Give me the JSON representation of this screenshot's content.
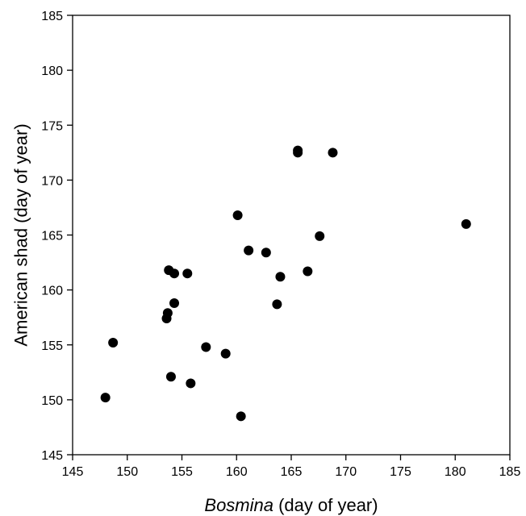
{
  "chart_data": {
    "type": "scatter",
    "xlabel_italic": "Bosmina",
    "xlabel_rest": " (day of year)",
    "ylabel": "American shad (day of year)",
    "xlim": [
      145,
      185
    ],
    "ylim": [
      145,
      185
    ],
    "xticks": [
      145,
      150,
      155,
      160,
      165,
      170,
      175,
      180,
      185
    ],
    "yticks": [
      145,
      150,
      155,
      160,
      165,
      170,
      175,
      180,
      185
    ],
    "grid": false,
    "legend": "none",
    "marker_color": "#000000",
    "points": [
      {
        "x": 148.0,
        "y": 150.2
      },
      {
        "x": 148.7,
        "y": 155.2
      },
      {
        "x": 153.6,
        "y": 157.4
      },
      {
        "x": 153.7,
        "y": 157.9
      },
      {
        "x": 153.8,
        "y": 161.8
      },
      {
        "x": 154.0,
        "y": 152.1
      },
      {
        "x": 154.3,
        "y": 161.5
      },
      {
        "x": 154.3,
        "y": 158.8
      },
      {
        "x": 155.5,
        "y": 161.5
      },
      {
        "x": 155.8,
        "y": 151.5
      },
      {
        "x": 157.2,
        "y": 154.8
      },
      {
        "x": 159.0,
        "y": 154.2
      },
      {
        "x": 160.1,
        "y": 166.8
      },
      {
        "x": 160.4,
        "y": 148.5
      },
      {
        "x": 161.1,
        "y": 163.6
      },
      {
        "x": 162.7,
        "y": 163.4
      },
      {
        "x": 163.7,
        "y": 158.7
      },
      {
        "x": 164.0,
        "y": 161.2
      },
      {
        "x": 165.6,
        "y": 172.7
      },
      {
        "x": 165.6,
        "y": 172.5
      },
      {
        "x": 166.5,
        "y": 161.7
      },
      {
        "x": 167.6,
        "y": 164.9
      },
      {
        "x": 168.8,
        "y": 172.5
      },
      {
        "x": 181.0,
        "y": 166.0
      }
    ]
  }
}
